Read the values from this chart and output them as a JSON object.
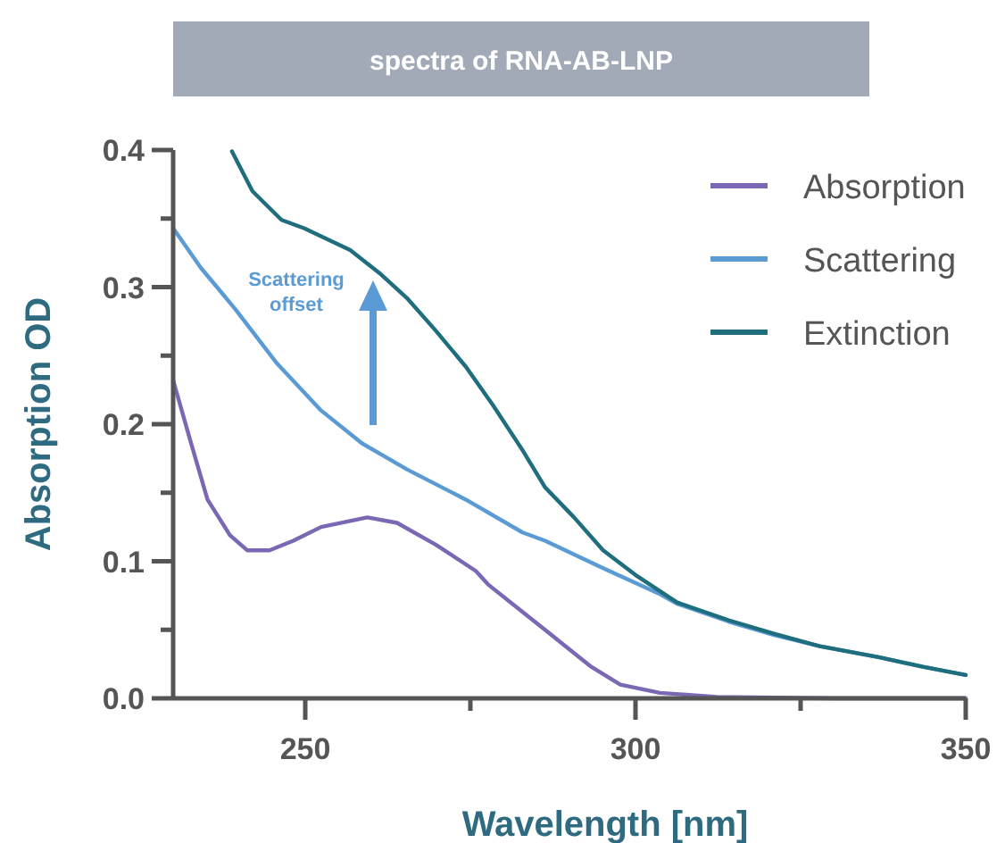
{
  "chart_data": {
    "type": "line",
    "title": "spectra of RNA-AB-LNP",
    "xlabel": "Wavelength [nm]",
    "ylabel": "Absorption OD",
    "annotations": [
      "Scattering\noffset"
    ],
    "xlim": [
      230,
      350
    ],
    "xticks": [
      250,
      {
        "value": 275,
        "label": null
      },
      300,
      {
        "value": 325,
        "label": null
      },
      350
    ],
    "ylim": [
      0,
      0.4
    ],
    "yticks": [
      {
        "value": 0,
        "label": "0.0"
      },
      {
        "value": 0.05,
        "label": null
      },
      0.1,
      {
        "value": 0.15,
        "label": null
      },
      0.2,
      {
        "value": 0.25,
        "label": null
      },
      0.3,
      {
        "value": 0.35,
        "label": null
      },
      0.4
    ],
    "grid": false,
    "legend": "top right",
    "marker": "none",
    "line_style": "solid",
    "series": [
      {
        "name": "Absorption",
        "color": "#7b68b5",
        "x": [
          230,
          232.6,
          235.2,
          238.6,
          241.2,
          244.6,
          248.2,
          252.4,
          259.4,
          263.9,
          269.8,
          275.8,
          277.7,
          282.9,
          286.3,
          293.3,
          297.7,
          303.7,
          312.3,
          330,
          350
        ],
        "values": [
          0.232,
          0.188,
          0.145,
          0.119,
          0.108,
          0.108,
          0.115,
          0.125,
          0.132,
          0.128,
          0.112,
          0.093,
          0.083,
          0.063,
          0.05,
          0.023,
          0.01,
          0.004,
          0.001,
          0,
          0
        ]
      },
      {
        "name": "Scattering",
        "color": "#5b9bd5",
        "x": [
          230,
          234.2,
          239.4,
          245.6,
          252.4,
          258.6,
          265.4,
          274.3,
          282.9,
          286.3,
          295.1,
          303.7,
          306.3,
          314.1,
          321.1,
          327.9,
          336.8,
          343.5,
          350
        ],
        "values": [
          0.343,
          0.314,
          0.284,
          0.245,
          0.21,
          0.186,
          0.167,
          0.145,
          0.121,
          0.115,
          0.095,
          0.076,
          0.069,
          0.056,
          0.046,
          0.038,
          0.03,
          0.023,
          0.017
        ]
      },
      {
        "name": "Extinction",
        "color": "#1e6e7e",
        "x": [
          238.9,
          242,
          246.4,
          249.8,
          256.8,
          261.3,
          265.4,
          269.8,
          274.3,
          278.4,
          282.9,
          286.3,
          290.7,
          295.1,
          300.3,
          306.3,
          314.1,
          321.1,
          327.9,
          336.8,
          343.5,
          350
        ],
        "values": [
          0.399,
          0.37,
          0.349,
          0.343,
          0.327,
          0.31,
          0.292,
          0.268,
          0.242,
          0.214,
          0.181,
          0.154,
          0.132,
          0.108,
          0.089,
          0.07,
          0.057,
          0.047,
          0.038,
          0.03,
          0.023,
          0.017
        ]
      }
    ]
  }
}
